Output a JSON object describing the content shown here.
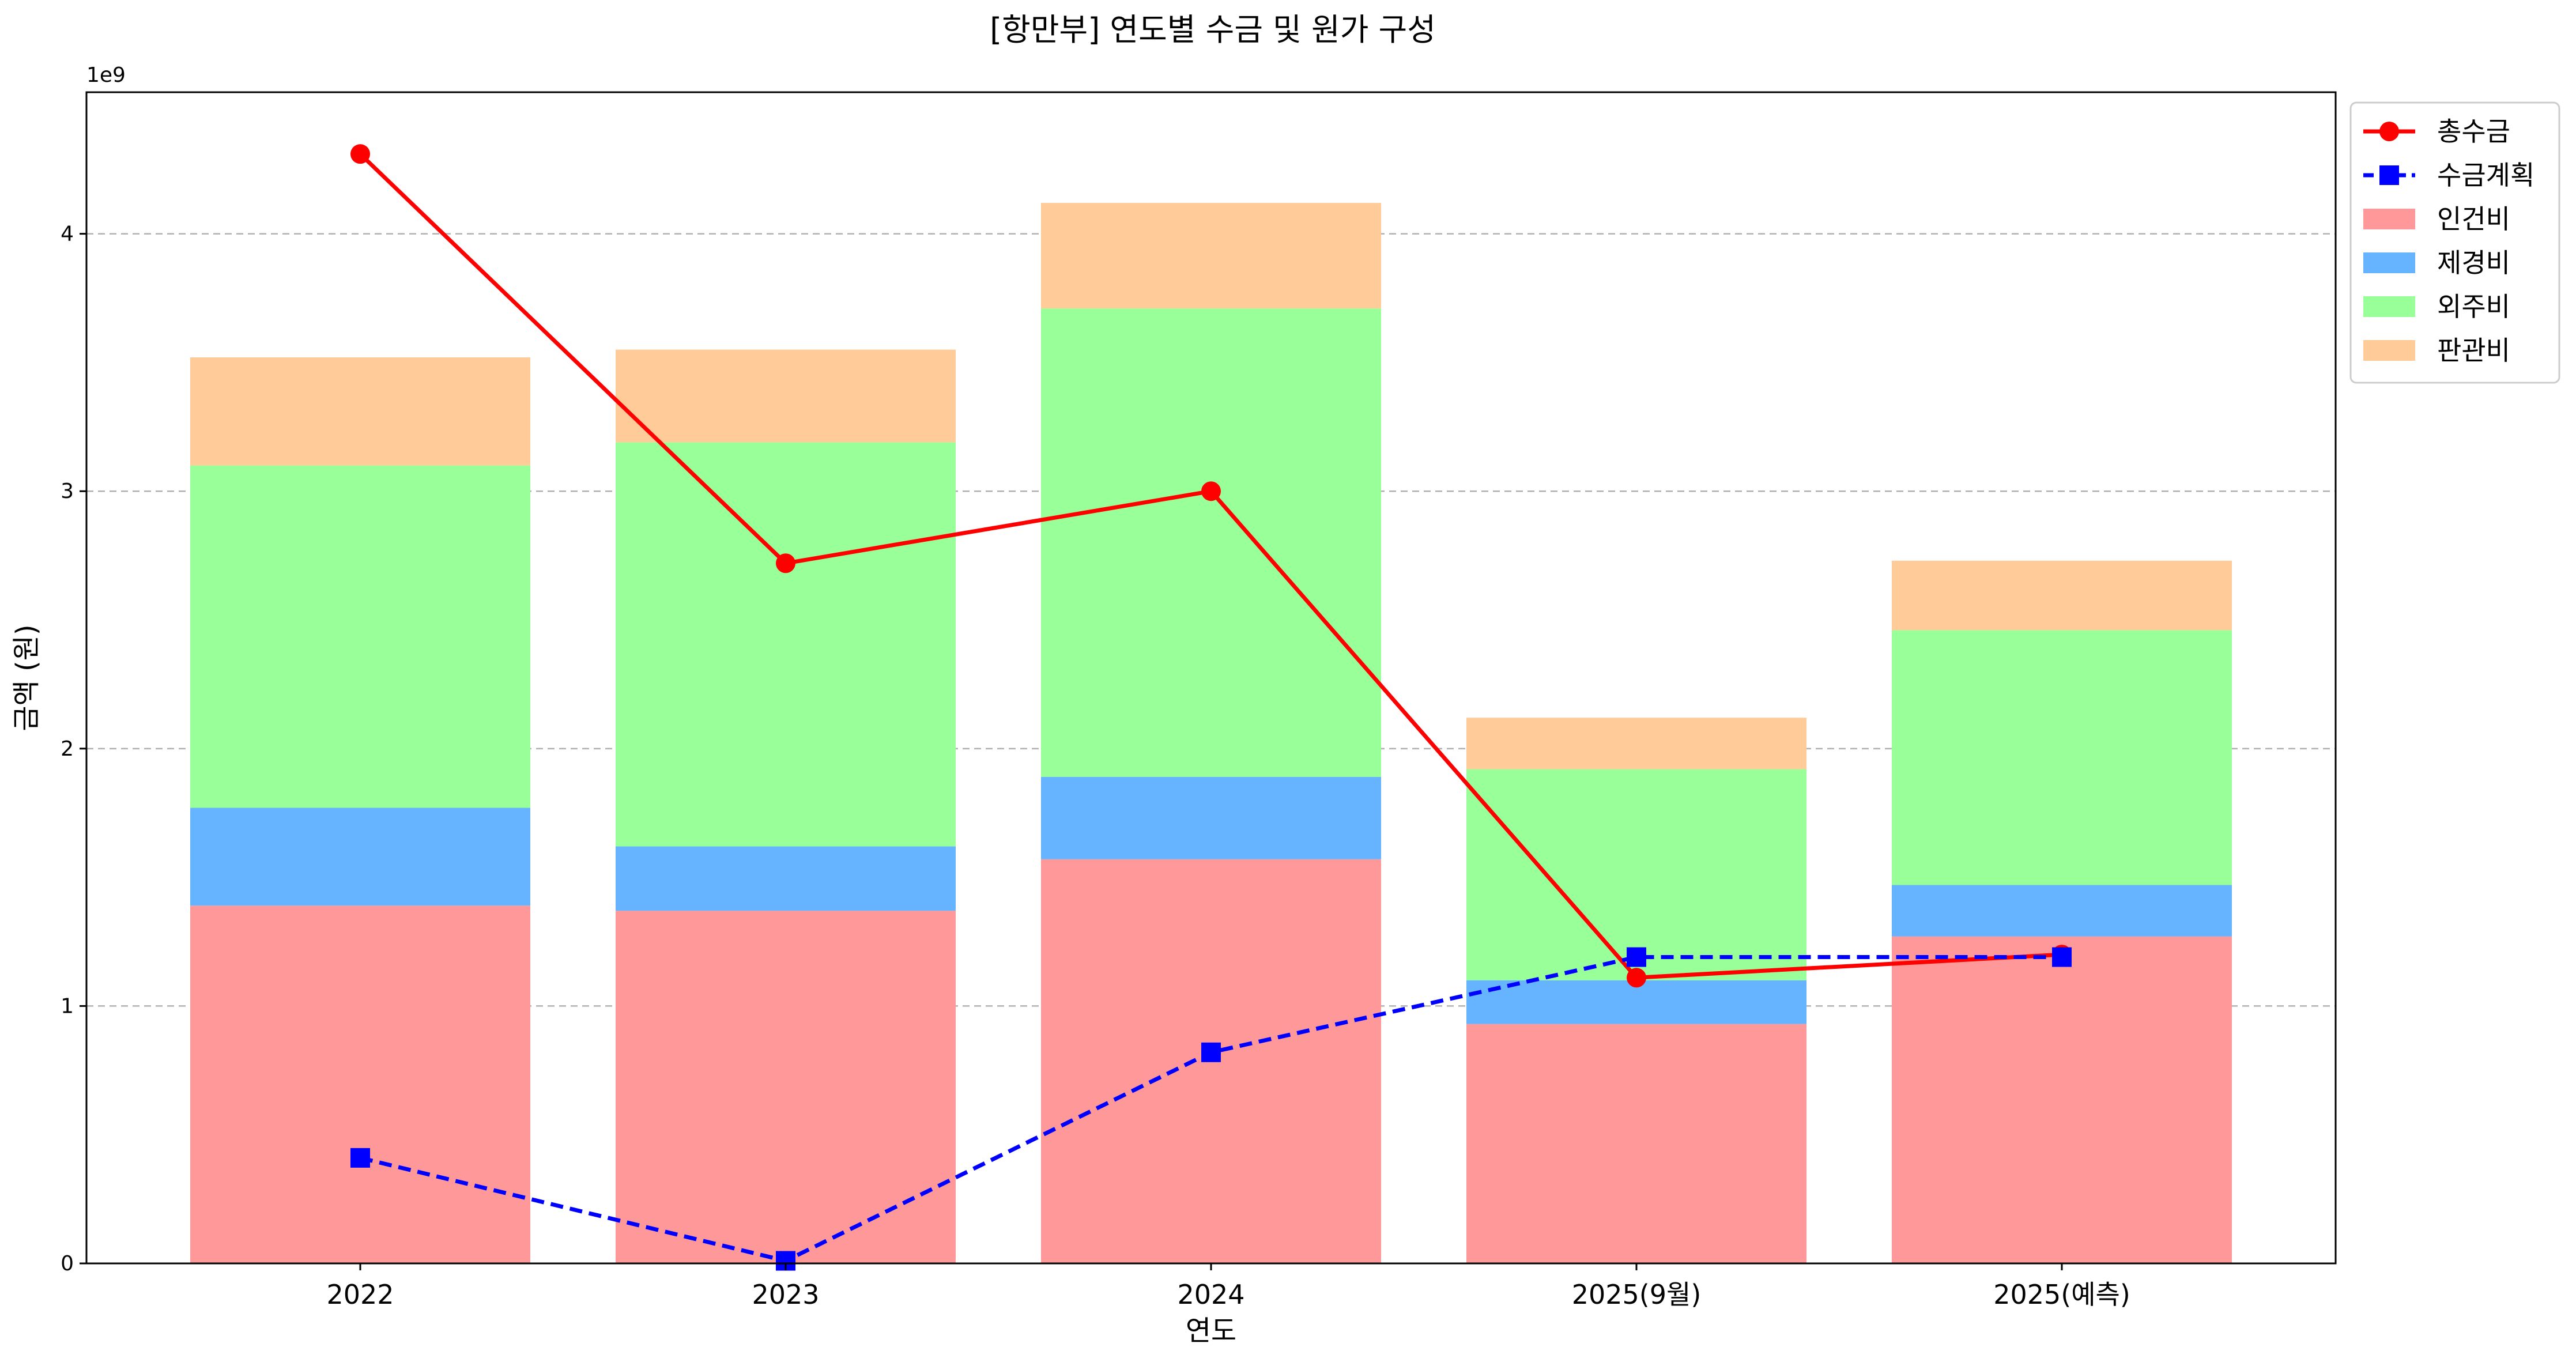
{
  "chart_data": {
    "type": "bar",
    "stacked": true,
    "title": "[항만부] 연도별 수금 및 원가 구성",
    "xlabel": "연도",
    "ylabel": "금액 (원)",
    "y_offset_label": "1e9",
    "ylim": [
      0,
      4.55
    ],
    "yticks": [
      "0",
      "1",
      "2",
      "3",
      "4"
    ],
    "grid": "y-dashed",
    "legend_position": "outside-top-right",
    "categories": [
      "2022",
      "2023",
      "2024",
      "2025(9월)",
      "2025(예측)"
    ],
    "series": [
      {
        "name": "인건비",
        "kind": "bar",
        "color": "#ff9999",
        "values": [
          1.39,
          1.37,
          1.57,
          0.93,
          1.27
        ]
      },
      {
        "name": "제경비",
        "kind": "bar",
        "color": "#66b3ff",
        "values": [
          0.38,
          0.25,
          0.32,
          0.17,
          0.2
        ]
      },
      {
        "name": "외주비",
        "kind": "bar",
        "color": "#99ff99",
        "values": [
          1.33,
          1.57,
          1.82,
          0.82,
          0.99
        ]
      },
      {
        "name": "판관비",
        "kind": "bar",
        "color": "#ffcc99",
        "values": [
          0.42,
          0.36,
          0.41,
          0.2,
          0.27
        ]
      },
      {
        "name": "총수금",
        "kind": "line",
        "color": "#ff0000",
        "marker": "circle",
        "dash": "solid",
        "values": [
          4.31,
          2.72,
          3.0,
          1.11,
          1.2
        ]
      },
      {
        "name": "수금계획",
        "kind": "line",
        "color": "#0000ff",
        "marker": "square",
        "dash": "dashed",
        "values": [
          0.41,
          0.01,
          0.82,
          1.19,
          1.19
        ]
      }
    ]
  }
}
